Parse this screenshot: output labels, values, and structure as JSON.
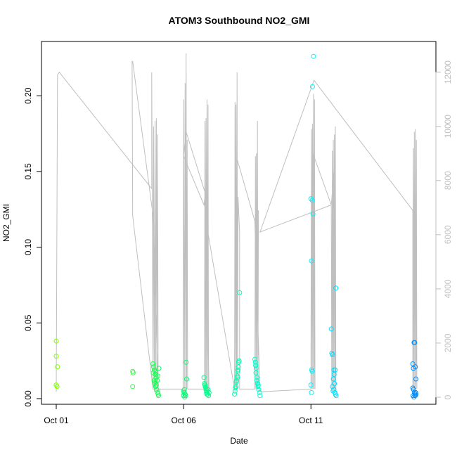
{
  "chart_data": {
    "type": "scatter",
    "title": "ATOM3 Southbound NO2_GMI",
    "xlabel": "Date",
    "ylabel": "NO2_GMI",
    "x_ticks": [
      "Oct 01",
      "Oct 06",
      "Oct 11"
    ],
    "y_left_ticks": [
      "0.00",
      "0.05",
      "0.10",
      "0.15",
      "0.20"
    ],
    "y_right_ticks": [
      "0",
      "2000",
      "4000",
      "6000",
      "8000",
      "10000",
      "12000"
    ],
    "xlim_days": [
      0.0,
      14.3
    ],
    "ylim_left": [
      0.0,
      0.227
    ],
    "ylim_right": [
      0,
      12900
    ],
    "grid": false,
    "legend": "none",
    "point_color_scale": [
      "#7fff00",
      "#00ff66",
      "#00ffff",
      "#0088ff"
    ],
    "line_color": "#bfbfbf",
    "series": [
      {
        "type": "points",
        "points": [
          [
            0.0,
            0.038
          ],
          [
            0.0,
            0.028
          ],
          [
            0.05,
            0.021
          ],
          [
            0.0,
            0.009
          ],
          [
            0.03,
            0.008
          ],
          [
            3.0,
            0.018
          ],
          [
            3.02,
            0.017
          ],
          [
            3.0,
            0.008
          ],
          [
            3.8,
            0.023
          ],
          [
            3.82,
            0.021
          ],
          [
            3.85,
            0.019
          ],
          [
            3.88,
            0.018
          ],
          [
            3.9,
            0.016
          ],
          [
            3.92,
            0.014
          ],
          [
            3.84,
            0.012
          ],
          [
            3.87,
            0.01
          ],
          [
            3.9,
            0.008
          ],
          [
            3.95,
            0.006
          ],
          [
            3.98,
            0.004
          ],
          [
            4.0,
            0.003
          ],
          [
            4.02,
            0.002
          ],
          [
            3.86,
            0.011
          ],
          [
            3.93,
            0.009
          ],
          [
            3.97,
            0.012
          ],
          [
            3.99,
            0.015
          ],
          [
            3.81,
            0.017
          ],
          [
            4.03,
            0.02
          ],
          [
            5.0,
            0.005
          ],
          [
            5.02,
            0.004
          ],
          [
            5.05,
            0.003
          ],
          [
            5.08,
            0.002
          ],
          [
            5.03,
            0.006
          ],
          [
            5.06,
            0.003
          ],
          [
            5.1,
            0.024
          ],
          [
            5.12,
            0.013
          ],
          [
            5.0,
            0.002
          ],
          [
            5.04,
            0.001
          ],
          [
            5.8,
            0.014
          ],
          [
            5.82,
            0.01
          ],
          [
            5.85,
            0.008
          ],
          [
            5.88,
            0.006
          ],
          [
            5.9,
            0.004
          ],
          [
            5.92,
            0.005
          ],
          [
            5.95,
            0.003
          ],
          [
            5.98,
            0.002
          ],
          [
            6.0,
            0.004
          ],
          [
            5.84,
            0.009
          ],
          [
            5.87,
            0.007
          ],
          [
            5.91,
            0.003
          ],
          [
            5.96,
            0.006
          ],
          [
            7.0,
            0.003
          ],
          [
            7.02,
            0.005
          ],
          [
            7.05,
            0.008
          ],
          [
            7.08,
            0.012
          ],
          [
            7.1,
            0.015
          ],
          [
            7.12,
            0.018
          ],
          [
            7.15,
            0.021
          ],
          [
            7.18,
            0.025
          ],
          [
            7.03,
            0.007
          ],
          [
            7.07,
            0.011
          ],
          [
            7.11,
            0.014
          ],
          [
            7.14,
            0.019
          ],
          [
            7.2,
            0.07
          ],
          [
            7.16,
            0.024
          ],
          [
            7.8,
            0.026
          ],
          [
            7.82,
            0.024
          ],
          [
            7.85,
            0.02
          ],
          [
            7.88,
            0.014
          ],
          [
            7.9,
            0.01
          ],
          [
            7.92,
            0.008
          ],
          [
            7.95,
            0.006
          ],
          [
            7.98,
            0.004
          ],
          [
            8.0,
            0.002
          ],
          [
            7.84,
            0.017
          ],
          [
            7.87,
            0.012
          ],
          [
            7.93,
            0.009
          ],
          [
            7.83,
            0.022
          ],
          [
            10.0,
            0.132
          ],
          [
            10.05,
            0.131
          ],
          [
            10.08,
            0.122
          ],
          [
            10.02,
            0.091
          ],
          [
            10.1,
            0.226
          ],
          [
            10.06,
            0.206
          ],
          [
            10.03,
            0.019
          ],
          [
            10.05,
            0.018
          ],
          [
            10.0,
            0.009
          ],
          [
            10.02,
            0.004
          ],
          [
            10.8,
            0.046
          ],
          [
            10.82,
            0.03
          ],
          [
            10.85,
            0.029
          ],
          [
            10.9,
            0.019
          ],
          [
            10.95,
            0.019
          ],
          [
            10.88,
            0.013
          ],
          [
            10.92,
            0.01
          ],
          [
            10.98,
            0.073
          ],
          [
            10.84,
            0.008
          ],
          [
            10.9,
            0.006
          ],
          [
            10.94,
            0.004
          ],
          [
            10.96,
            0.003
          ],
          [
            10.99,
            0.002
          ],
          [
            10.87,
            0.005
          ],
          [
            10.91,
            0.016
          ],
          [
            14.0,
            0.023
          ],
          [
            14.02,
            0.02
          ],
          [
            14.05,
            0.037
          ],
          [
            14.07,
            0.037
          ],
          [
            14.1,
            0.021
          ],
          [
            14.12,
            0.013
          ],
          [
            14.0,
            0.007
          ],
          [
            14.03,
            0.006
          ],
          [
            14.06,
            0.004
          ],
          [
            14.08,
            0.003
          ],
          [
            14.1,
            0.002
          ],
          [
            14.13,
            0.003
          ],
          [
            14.01,
            0.002
          ],
          [
            14.04,
            0.001
          ],
          [
            14.09,
            0.002
          ],
          [
            14.11,
            0.004
          ]
        ]
      },
      {
        "type": "line",
        "axis": "right",
        "points": [
          [
            0.0,
            200
          ],
          [
            0.05,
            11900
          ],
          [
            0.12,
            12000
          ],
          [
            3.75,
            7700
          ],
          [
            3.75,
            12000
          ],
          [
            3.8,
            300
          ],
          [
            3.82,
            10000
          ],
          [
            3.85,
            200
          ],
          [
            3.88,
            10200
          ],
          [
            3.9,
            300
          ],
          [
            3.93,
            10300
          ],
          [
            3.95,
            300
          ],
          [
            3.98,
            9700
          ],
          [
            4.0,
            200
          ],
          [
            3.8,
            6700
          ],
          [
            3.0,
            12400
          ],
          [
            2.98,
            12400
          ],
          [
            3.0,
            6700
          ],
          [
            3.8,
            300
          ],
          [
            4.98,
            300
          ],
          [
            5.0,
            11000
          ],
          [
            5.03,
            300
          ],
          [
            5.06,
            11600
          ],
          [
            5.08,
            300
          ],
          [
            5.1,
            12700
          ],
          [
            5.12,
            300
          ],
          [
            5.14,
            9500
          ],
          [
            5.16,
            300
          ],
          [
            5.82,
            300
          ],
          [
            5.84,
            10200
          ],
          [
            5.86,
            300
          ],
          [
            5.88,
            10300
          ],
          [
            5.9,
            300
          ],
          [
            5.92,
            11000
          ],
          [
            5.94,
            300
          ],
          [
            5.96,
            10800
          ],
          [
            5.98,
            300
          ],
          [
            6.0,
            200
          ],
          [
            5.86,
            7500
          ],
          [
            5.1,
            9800
          ],
          [
            5.0,
            8900
          ],
          [
            5.8,
            7100
          ],
          [
            5.85,
            7500
          ],
          [
            5.88,
            6500
          ],
          [
            7.0,
            300
          ],
          [
            7.02,
            10900
          ],
          [
            7.04,
            300
          ],
          [
            7.06,
            10800
          ],
          [
            7.08,
            300
          ],
          [
            7.1,
            12000
          ],
          [
            7.12,
            300
          ],
          [
            7.14,
            7400
          ],
          [
            7.2,
            6100
          ],
          [
            7.2,
            300
          ],
          [
            7.8,
            300
          ],
          [
            7.82,
            8900
          ],
          [
            7.84,
            300
          ],
          [
            7.86,
            9000
          ],
          [
            7.88,
            300
          ],
          [
            7.9,
            10200
          ],
          [
            7.92,
            300
          ],
          [
            7.94,
            6900
          ],
          [
            7.8,
            6500
          ],
          [
            7.1,
            8800
          ],
          [
            7.8,
            6500
          ],
          [
            7.84,
            5000
          ],
          [
            8.0,
            200
          ],
          [
            10.0,
            300
          ],
          [
            10.02,
            9900
          ],
          [
            10.04,
            300
          ],
          [
            10.06,
            10100
          ],
          [
            10.08,
            300
          ],
          [
            10.1,
            11200
          ],
          [
            10.12,
            300
          ],
          [
            10.14,
            11000
          ],
          [
            10.16,
            300
          ],
          [
            10.08,
            9000
          ],
          [
            10.8,
            7100
          ],
          [
            10.82,
            300
          ],
          [
            10.84,
            9100
          ],
          [
            10.86,
            300
          ],
          [
            10.88,
            9500
          ],
          [
            10.9,
            300
          ],
          [
            10.92,
            9700
          ],
          [
            10.94,
            300
          ],
          [
            10.96,
            10000
          ],
          [
            10.98,
            300
          ],
          [
            10.9,
            8300
          ],
          [
            10.8,
            7100
          ],
          [
            8.0,
            6100
          ],
          [
            10.12,
            11700
          ],
          [
            14.0,
            6900
          ],
          [
            14.0,
            300
          ],
          [
            14.02,
            9200
          ],
          [
            14.04,
            300
          ],
          [
            14.06,
            9800
          ],
          [
            14.08,
            300
          ],
          [
            14.1,
            9900
          ],
          [
            14.12,
            300
          ],
          [
            14.14,
            9500
          ],
          [
            14.16,
            300
          ],
          [
            14.1,
            6900
          ]
        ]
      }
    ]
  }
}
